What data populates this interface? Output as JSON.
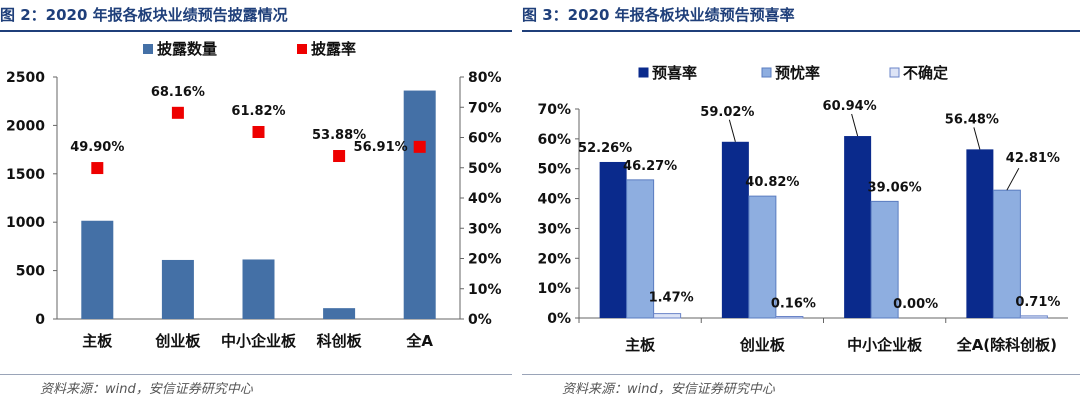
{
  "figures": [
    {
      "title": "图 2：2020 年报各板块业绩预告披露情况",
      "source": "资料来源：wind，安信证券研究中心"
    },
    {
      "title": "图 3：2020 年报各板块业绩预告预喜率",
      "source": "资料来源：wind，安信证券研究中心"
    }
  ],
  "colors": {
    "title": "#1f3f7a",
    "bar_left": "#4470a6",
    "marker": "#ee0000",
    "s1": "#0a2a8c",
    "s2": "#8eaee0",
    "s3": "#dde4f6"
  },
  "chart_data": [
    {
      "type": "bar",
      "title": "2020 年报各板块业绩预告披露情况",
      "categories": [
        "主板",
        "创业板",
        "中小企业板",
        "科创板",
        "全A"
      ],
      "series": [
        {
          "name": "披露数量",
          "type": "bar",
          "axis": "left",
          "values": [
            1015,
            610,
            615,
            112,
            2360
          ]
        },
        {
          "name": "披露率",
          "type": "scatter",
          "axis": "right",
          "values": [
            49.9,
            68.16,
            61.82,
            53.88,
            56.91
          ],
          "labels": [
            "49.90%",
            "68.16%",
            "61.82%",
            "53.88%",
            "56.91%"
          ]
        }
      ],
      "y_left": {
        "lim": [
          0,
          2500
        ],
        "ticks": [
          "0",
          "500",
          "1000",
          "1500",
          "2000",
          "2500"
        ]
      },
      "y_right": {
        "lim": [
          0,
          80
        ],
        "ticks": [
          "0%",
          "10%",
          "20%",
          "30%",
          "40%",
          "50%",
          "60%",
          "70%",
          "80%"
        ]
      },
      "legend": "top"
    },
    {
      "type": "bar",
      "title": "2020 年报各板块业绩预告预喜率",
      "categories": [
        "主板",
        "创业板",
        "中小企业板",
        "全A(除科创板)"
      ],
      "series": [
        {
          "name": "预喜率",
          "values": [
            52.26,
            59.02,
            60.94,
            56.48
          ],
          "labels": [
            "52.26%",
            "59.02%",
            "60.94%",
            "56.48%"
          ]
        },
        {
          "name": "预忧率",
          "values": [
            46.27,
            40.82,
            39.06,
            42.81
          ],
          "labels": [
            "46.27%",
            "40.82%",
            "39.06%",
            "42.81%"
          ]
        },
        {
          "name": "不确定",
          "values": [
            1.47,
            0.16,
            0.0,
            0.71
          ],
          "labels": [
            "1.47%",
            "0.16%",
            "0.00%",
            "0.71%"
          ]
        }
      ],
      "y": {
        "lim": [
          0,
          70
        ],
        "ticks": [
          "0%",
          "10%",
          "20%",
          "30%",
          "40%",
          "50%",
          "60%",
          "70%"
        ]
      },
      "legend": "top"
    }
  ]
}
